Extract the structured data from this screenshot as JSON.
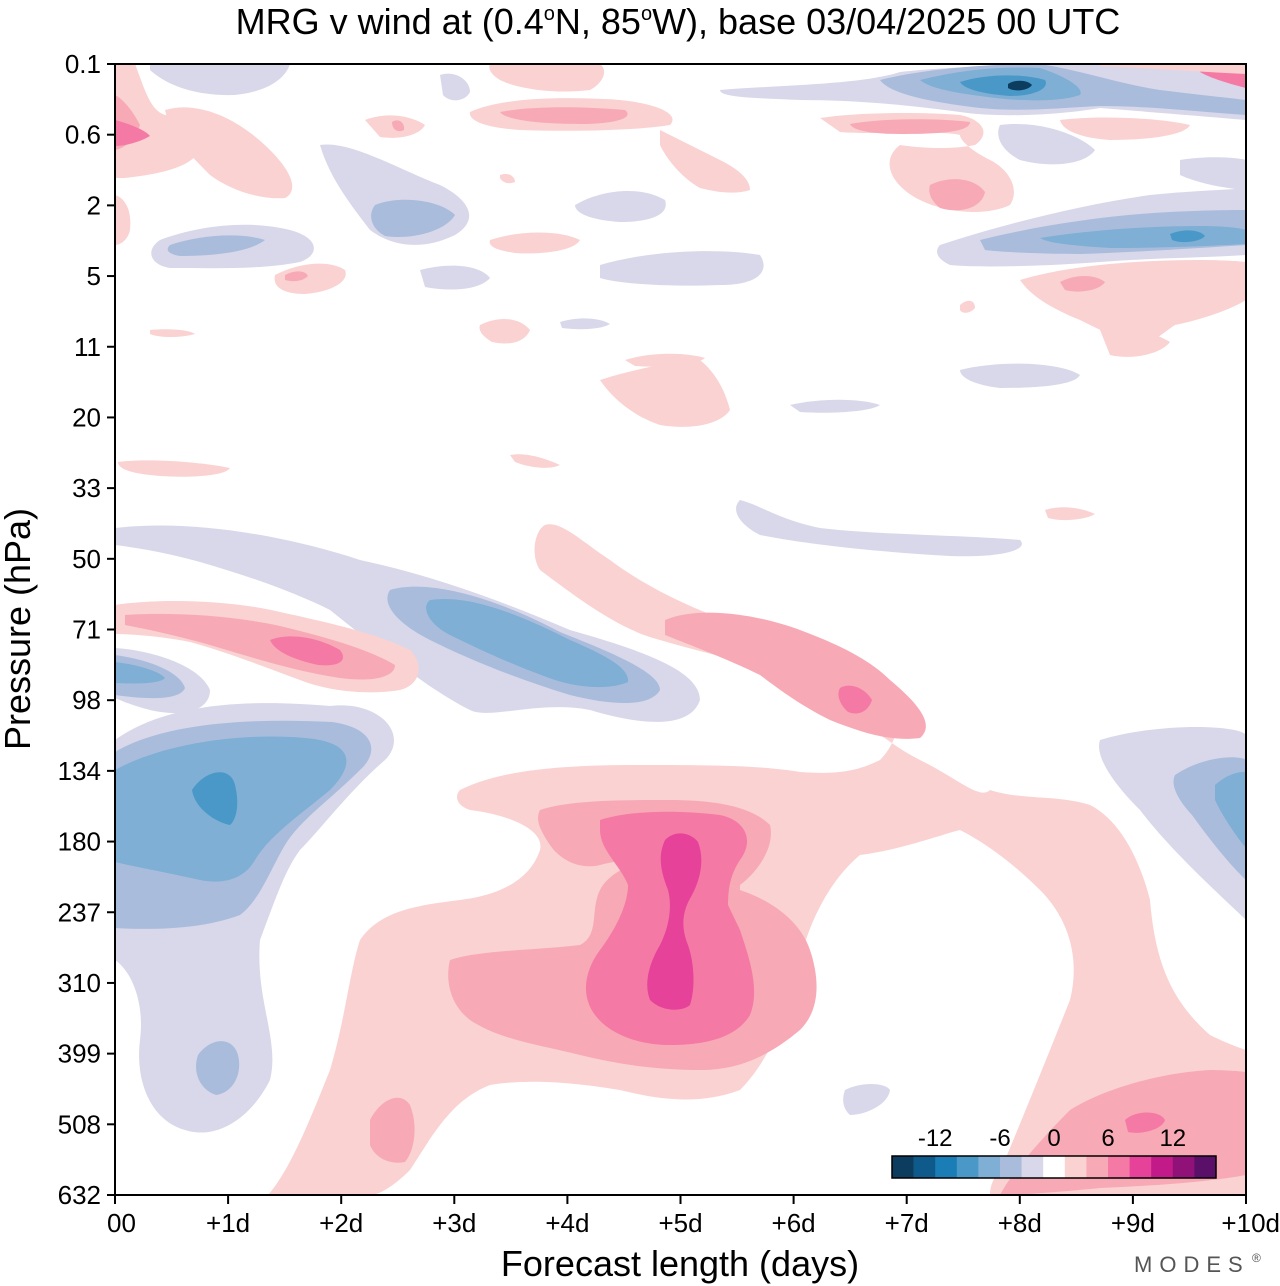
{
  "chart_data": {
    "type": "heatmap",
    "title_main": "MRG v wind at (0.4",
    "title_deg1": "o",
    "title_mid": "N, 85",
    "title_deg2": "o",
    "title_end": "W),  base 03/04/2025  00 UTC",
    "xlabel": "Forecast length (days)",
    "ylabel": "Pressure (hPa)",
    "x_ticks": [
      "00",
      "+1d",
      "+2d",
      "+3d",
      "+4d",
      "+5d",
      "+6d",
      "+7d",
      "+8d",
      "+9d",
      "+10d"
    ],
    "y_ticks": [
      "0.1",
      "0.6",
      "2",
      "5",
      "11",
      "20",
      "33",
      "50",
      "71",
      "98",
      "134",
      "180",
      "237",
      "310",
      "399",
      "508",
      "632"
    ],
    "xlim": [
      0,
      10
    ],
    "ylim_hPa": [
      0.1,
      632
    ],
    "colorbar": {
      "tick_labels": [
        "-12",
        "-6",
        "0",
        "6",
        "12"
      ],
      "tick_levels": [
        -12,
        -6,
        0,
        6,
        12
      ],
      "levels": [
        -16,
        -14,
        -12,
        -10,
        -8,
        -6,
        -4,
        -2,
        2,
        4,
        6,
        8,
        10,
        12,
        14,
        16
      ],
      "colors": [
        "#0c3d5f",
        "#0e5a8a",
        "#1a7db5",
        "#4a98c8",
        "#7fafd4",
        "#aabcdc",
        "#d8d8ea",
        "#ffffff",
        "#fad2d2",
        "#f7aab5",
        "#f47aa5",
        "#e6429a",
        "#c21a88",
        "#901178",
        "#5a1068"
      ]
    },
    "features": [
      {
        "label": "negative",
        "day": 1.0,
        "p": 150,
        "peak": -8
      },
      {
        "label": "negative",
        "day": 3.8,
        "p": 80,
        "peak": -7
      },
      {
        "label": "negative",
        "day": 8.0,
        "p": 0.2,
        "peak": -10
      },
      {
        "label": "negative",
        "day": 9.5,
        "p": 3,
        "peak": -7
      },
      {
        "label": "negative",
        "day": 10.0,
        "p": 150,
        "peak": -6
      },
      {
        "label": "negative",
        "day": 0.8,
        "p": 430,
        "peak": -4
      },
      {
        "label": "positive",
        "day": 1.6,
        "p": 80,
        "peak": 10
      },
      {
        "label": "positive",
        "day": 5.0,
        "p": 200,
        "peak": 11
      },
      {
        "label": "positive",
        "day": 5.0,
        "p": 320,
        "peak": 11
      },
      {
        "label": "positive",
        "day": 6.5,
        "p": 98,
        "peak": 9
      },
      {
        "label": "positive",
        "day": 9.2,
        "p": 520,
        "peak": 9
      },
      {
        "label": "positive",
        "day": 0.2,
        "p": 0.6,
        "peak": 8
      },
      {
        "label": "positive",
        "day": 9.5,
        "p": 0.1,
        "peak": 9
      }
    ]
  },
  "branding": {
    "logo_text": "MODES",
    "logo_mark": "®"
  }
}
